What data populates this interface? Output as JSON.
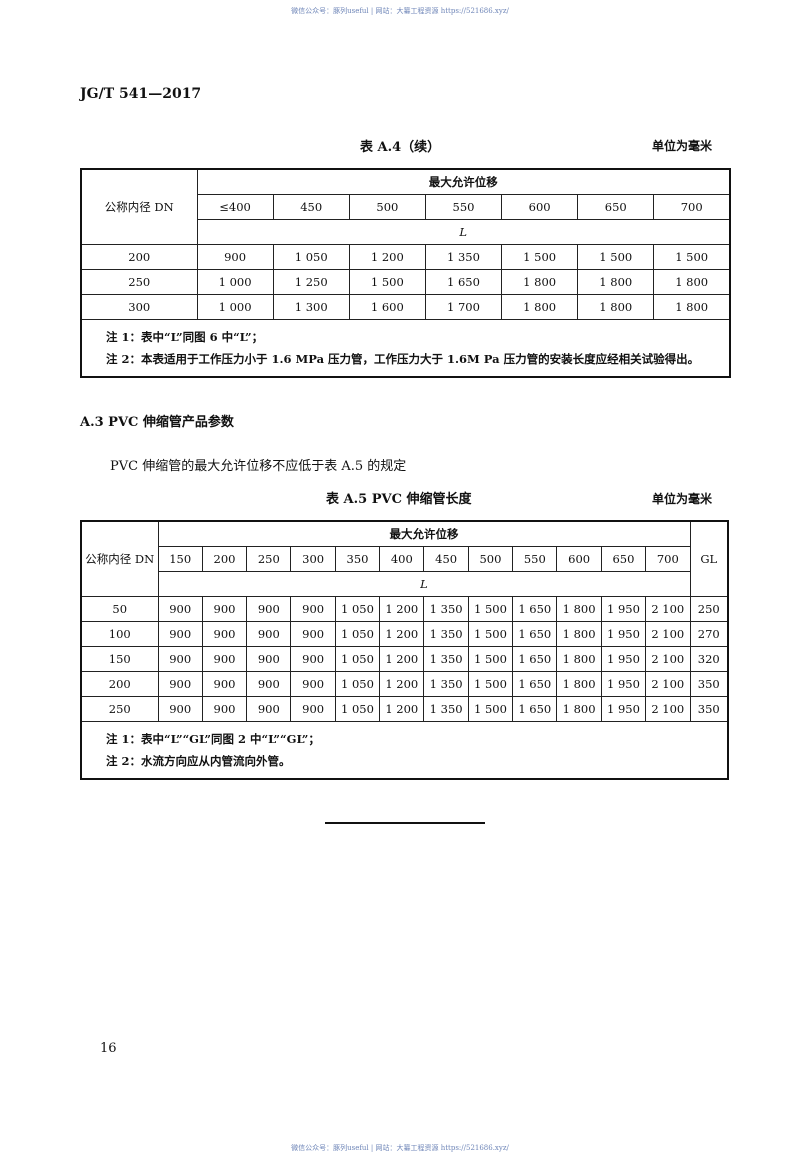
{
  "watermark": "微信公众号：豚列useful | 网站：大纂工程资源 https://521686.xyz/",
  "std_code": "JG/T 541—2017",
  "table_a4": {
    "caption": "表 A.4（续）",
    "unit": "单位为毫米",
    "dn_header": "公称内径 DN",
    "group_header": "最大允许位移",
    "columns": [
      "≤400",
      "450",
      "500",
      "550",
      "600",
      "650",
      "700"
    ],
    "sub_header": "L",
    "rows": [
      {
        "dn": "200",
        "values": [
          "900",
          "1 050",
          "1 200",
          "1 350",
          "1 500",
          "1 500",
          "1 500"
        ]
      },
      {
        "dn": "250",
        "values": [
          "1 000",
          "1 250",
          "1 500",
          "1 650",
          "1 800",
          "1 800",
          "1 800"
        ]
      },
      {
        "dn": "300",
        "values": [
          "1 000",
          "1 300",
          "1 600",
          "1 700",
          "1 800",
          "1 800",
          "1 800"
        ]
      }
    ],
    "notes": [
      "注 1：表中“L”同图 6 中“L”；",
      "注 2：本表适用于工作压力小于 1.6 MPa 压力管，工作压力大于 1.6M Pa 压力管的安装长度应经相关试验得出。"
    ]
  },
  "section": {
    "heading": "A.3  PVC 伸缩管产品参数",
    "body": "PVC 伸缩管的最大允许位移不应低于表 A.5 的规定"
  },
  "table_a5": {
    "caption": "表 A.5  PVC 伸缩管长度",
    "unit": "单位为毫米",
    "dn_header": "公称内径 DN",
    "group_header": "最大允许位移",
    "gl_header": "GL",
    "columns": [
      "150",
      "200",
      "250",
      "300",
      "350",
      "400",
      "450",
      "500",
      "550",
      "600",
      "650",
      "700"
    ],
    "sub_header": "L",
    "rows": [
      {
        "dn": "50",
        "values": [
          "900",
          "900",
          "900",
          "900",
          "1 050",
          "1 200",
          "1 350",
          "1 500",
          "1 650",
          "1 800",
          "1 950",
          "2 100"
        ],
        "gl": "250"
      },
      {
        "dn": "100",
        "values": [
          "900",
          "900",
          "900",
          "900",
          "1 050",
          "1 200",
          "1 350",
          "1 500",
          "1 650",
          "1 800",
          "1 950",
          "2 100"
        ],
        "gl": "270"
      },
      {
        "dn": "150",
        "values": [
          "900",
          "900",
          "900",
          "900",
          "1 050",
          "1 200",
          "1 350",
          "1 500",
          "1 650",
          "1 800",
          "1 950",
          "2 100"
        ],
        "gl": "320"
      },
      {
        "dn": "200",
        "values": [
          "900",
          "900",
          "900",
          "900",
          "1 050",
          "1 200",
          "1 350",
          "1 500",
          "1 650",
          "1 800",
          "1 950",
          "2 100"
        ],
        "gl": "350"
      },
      {
        "dn": "250",
        "values": [
          "900",
          "900",
          "900",
          "900",
          "1 050",
          "1 200",
          "1 350",
          "1 500",
          "1 650",
          "1 800",
          "1 950",
          "2 100"
        ],
        "gl": "350"
      }
    ],
    "notes": [
      "注 1：表中“L”“GL”同图 2 中“L”“GL”；",
      "注 2：水流方向应从内管流向外管。"
    ]
  },
  "page_number": "16"
}
